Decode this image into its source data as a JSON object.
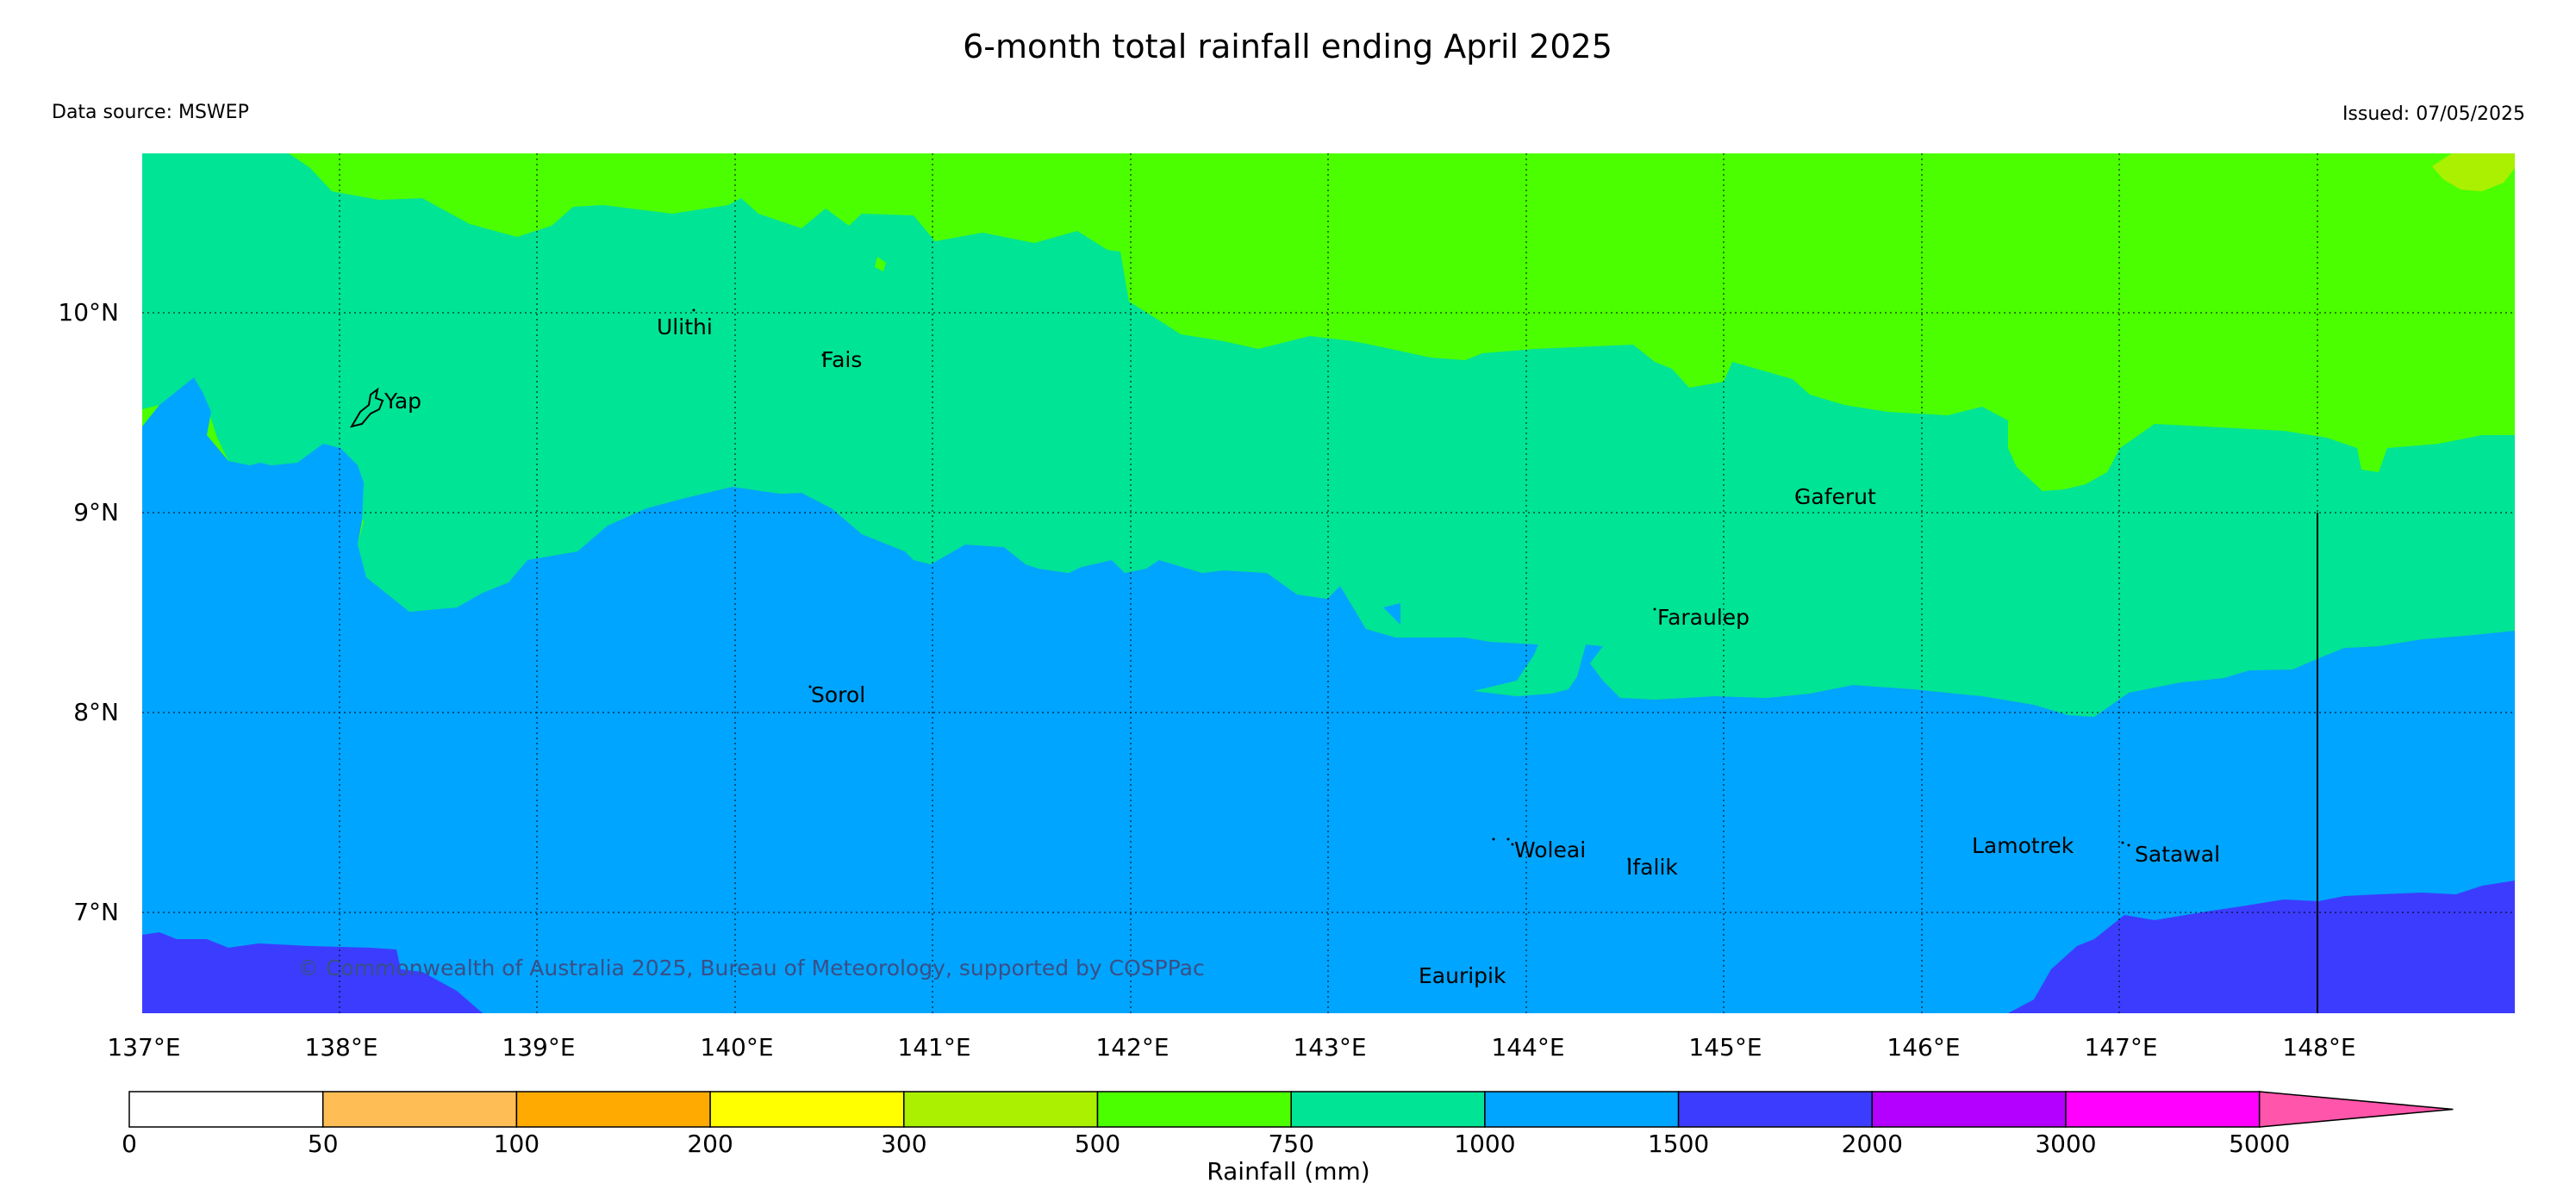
{
  "title": "6-month total rainfall ending April 2025",
  "data_source": "Data source: MSWEP",
  "issued": "Issued: 07/05/2025",
  "copyright": "© Commonwealth of Australia 2025, Bureau of Meteorology, supported by COSPPac",
  "lon_labels": [
    "137°E",
    "138°E",
    "139°E",
    "140°E",
    "141°E",
    "142°E",
    "143°E",
    "144°E",
    "145°E",
    "146°E",
    "147°E",
    "148°E"
  ],
  "lat_labels": [
    "10°N",
    "9°N",
    "8°N",
    "7°N"
  ],
  "places": [
    {
      "name": "Ulithi"
    },
    {
      "name": "Fais"
    },
    {
      "name": "Yap"
    },
    {
      "name": "Gaferut"
    },
    {
      "name": "Faraulep"
    },
    {
      "name": "Sorol"
    },
    {
      "name": "Woleai"
    },
    {
      "name": "Ifalik"
    },
    {
      "name": "Lamotrek"
    },
    {
      "name": "Satawal"
    },
    {
      "name": "Eauripik"
    }
  ],
  "colorbar": {
    "label": "Rainfall (mm)",
    "ticks": [
      "0",
      "50",
      "100",
      "200",
      "300",
      "500",
      "750",
      "1000",
      "1500",
      "2000",
      "3000",
      "5000"
    ],
    "colors": [
      "#ffffff",
      "#ffbe55",
      "#ffaa00",
      "#ffff00",
      "#aaf000",
      "#4cff00",
      "#00e496",
      "#00a5ff",
      "#3c3cff",
      "#b400ff",
      "#ff00ff",
      "#ff55aa"
    ]
  },
  "region_colors": {
    "500-750": "#4cff00",
    "750-1000": "#00e496",
    "1000-1500": "#00a5ff",
    "1500-2000": "#3c3cff",
    "300-500": "#aaf000"
  }
}
